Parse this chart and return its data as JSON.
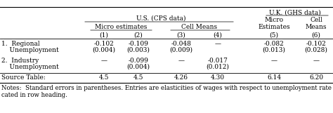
{
  "title_us": "U.S. (CPS data)",
  "title_uk": "U.K. (GHS data)",
  "sub_us_left": "Micro estimates",
  "sub_us_right": "Cell Means",
  "sub_uk_left": "Micro\nEstimates",
  "sub_uk_right": "Cell\nMeans",
  "col_nums": [
    "(1)",
    "(2)",
    "(3)",
    "(4)",
    "(5)",
    "(6)"
  ],
  "row1_label": [
    "1.  Regional",
    "    Unemployment"
  ],
  "row1_vals": [
    "-0.102",
    "-0.109",
    "-0.048",
    "—",
    "-0.082",
    "-0.102"
  ],
  "row1_se": [
    "(0.004)",
    "(0.003)",
    "(0.009)",
    "",
    "(0.013)",
    "(0.028)"
  ],
  "row2_label": [
    "2.  Industry",
    "    Unemployment"
  ],
  "row2_vals": [
    "—",
    "-0.099",
    "—",
    "-0.017",
    "—",
    "—"
  ],
  "row2_se": [
    "",
    "(0.004)",
    "",
    "(0.012)",
    "",
    ""
  ],
  "row3_label": "Source Table:",
  "row3_vals": [
    "4.5",
    "4.5",
    "4.26",
    "4.30",
    "6.14",
    "6.20"
  ],
  "notes_line1": "Notes:  Standard errors in parentheses. Entries are elasticities of wages with respect to unemployment rate indi-",
  "notes_line2": "cated in row heading.",
  "bg_color": "#ffffff",
  "text_color": "#000000",
  "font_size": 6.5
}
